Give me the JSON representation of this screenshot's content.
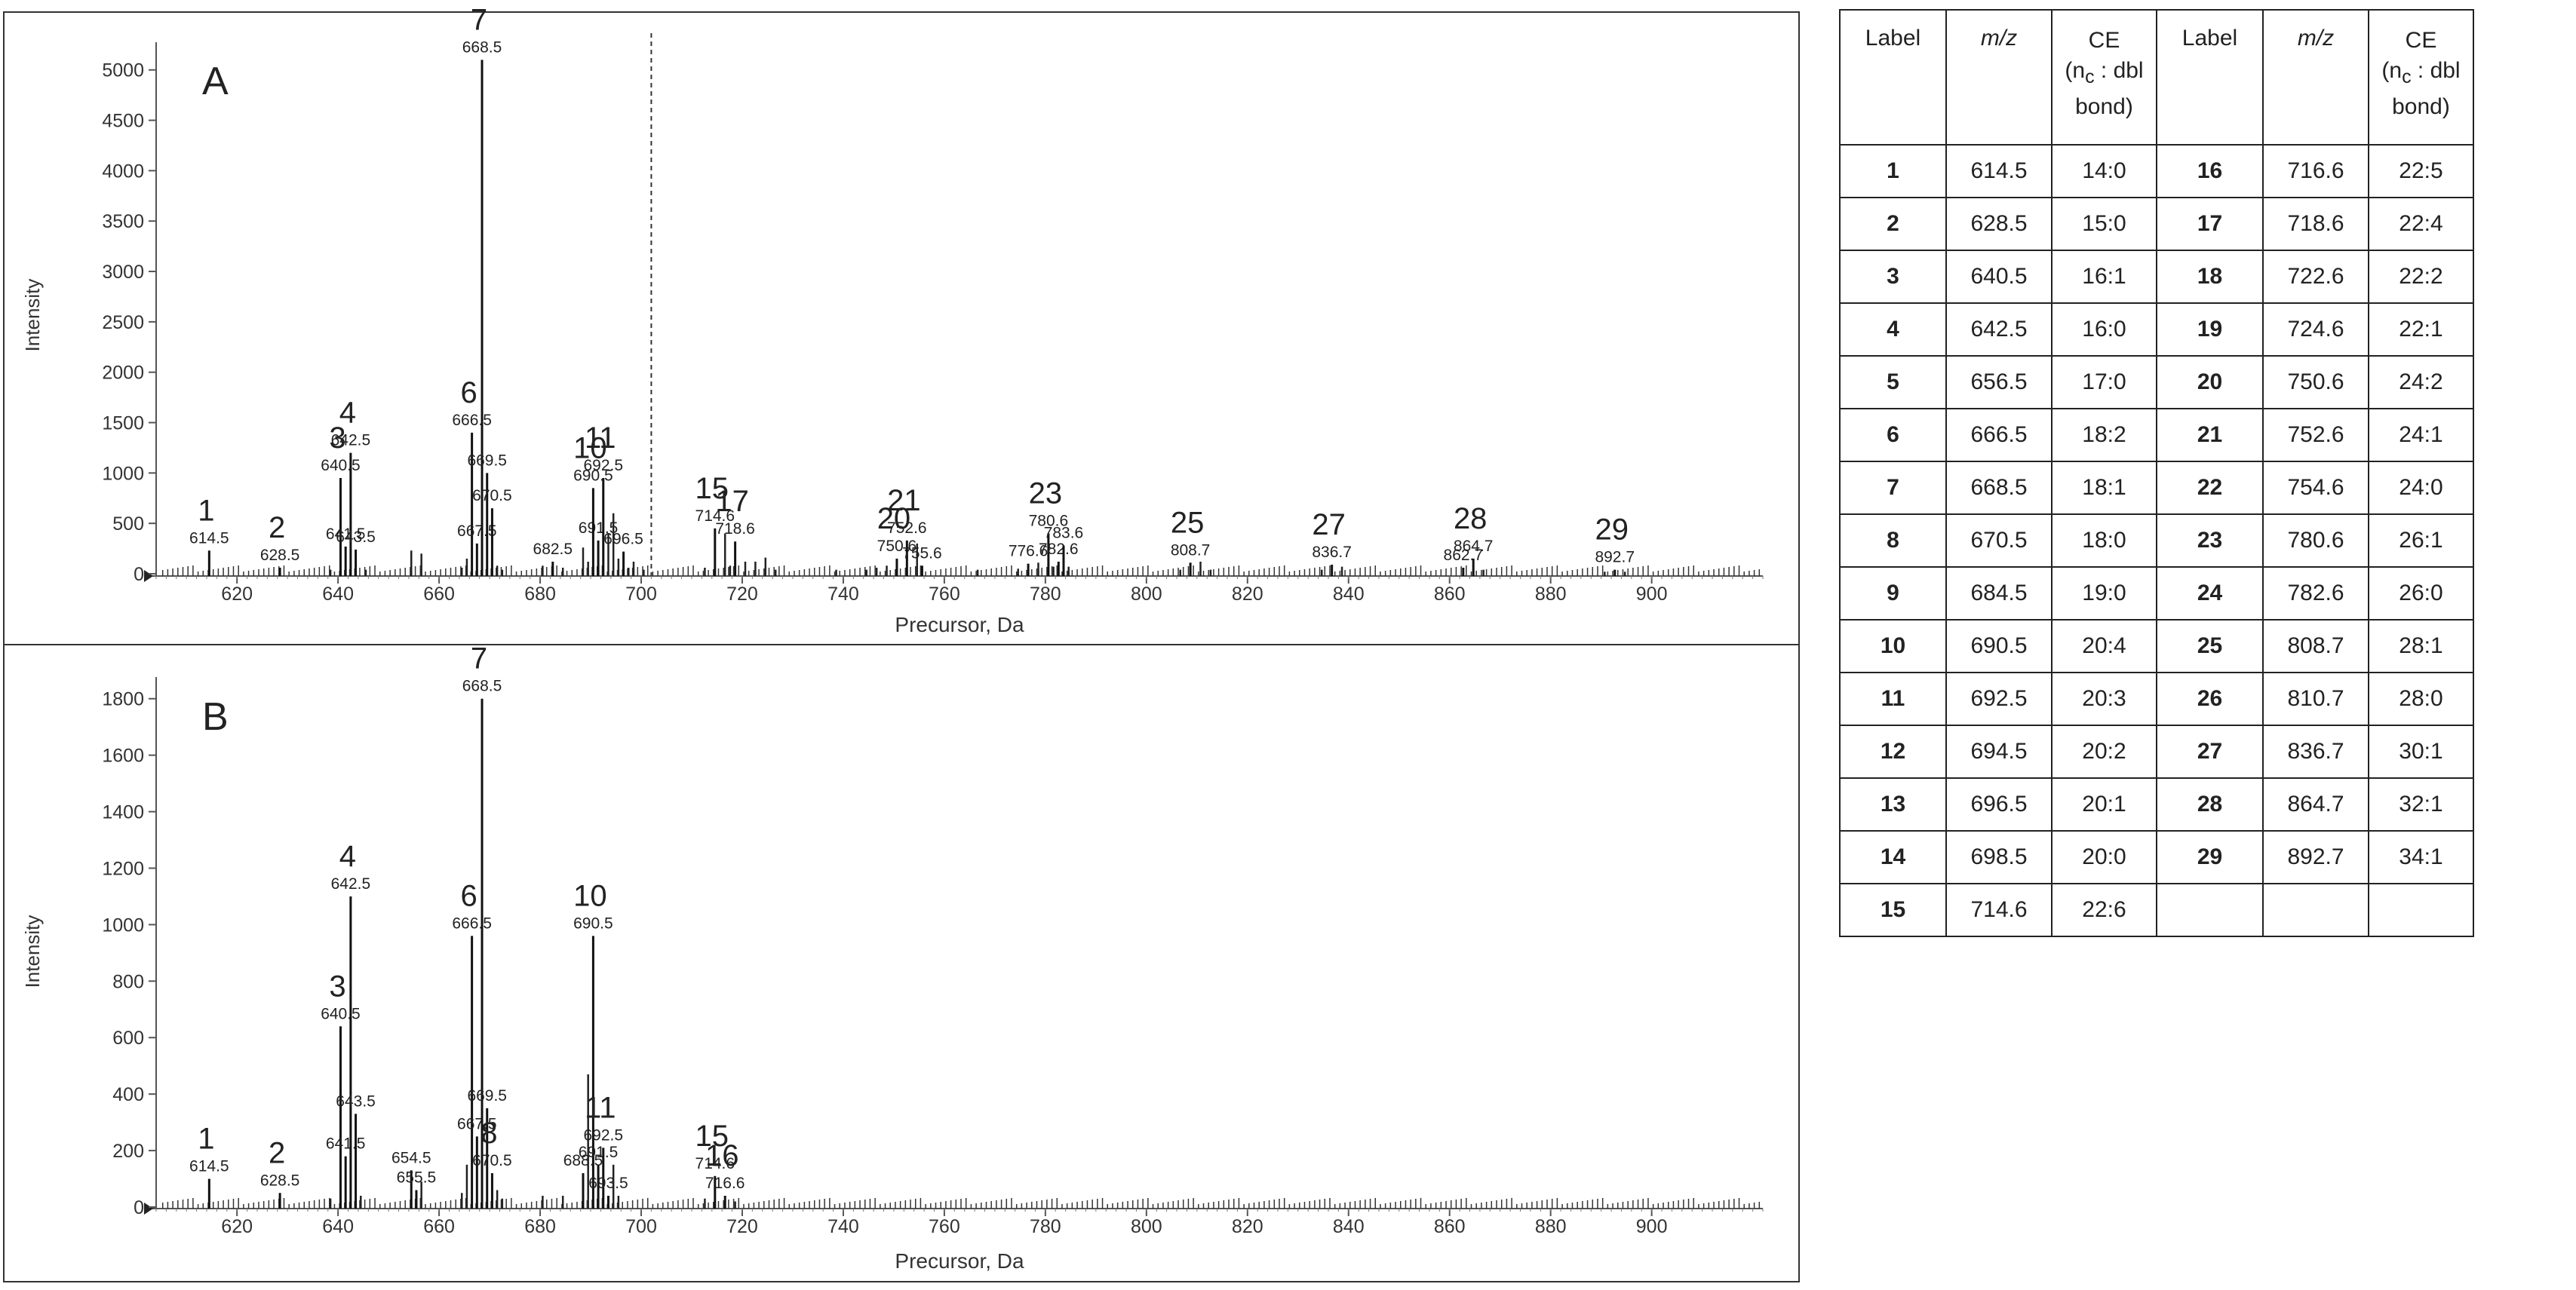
{
  "chart_data": [
    {
      "type": "bar",
      "panel_label": "A",
      "xlabel": "Precursor, Da",
      "ylabel": "Intensity",
      "xlim": [
        604,
        922
      ],
      "ylim": [
        0,
        5200
      ],
      "x_ticks": [
        620,
        640,
        660,
        680,
        700,
        720,
        740,
        760,
        780,
        800,
        820,
        840,
        860,
        880,
        900
      ],
      "y_ticks": [
        0,
        500,
        1000,
        1500,
        2000,
        2500,
        3000,
        3500,
        4000,
        4500,
        5000
      ],
      "dashed_line_x": 702,
      "peaks": [
        {
          "mz": 614.5,
          "intensity": 230,
          "mz_label": "614.5",
          "num": "1"
        },
        {
          "mz": 628.5,
          "intensity": 60,
          "mz_label": "628.5",
          "num": "2"
        },
        {
          "mz": 640.5,
          "intensity": 950,
          "mz_label": "640.5",
          "num": "3"
        },
        {
          "mz": 641.5,
          "intensity": 270,
          "mz_label": "641.5",
          "num": ""
        },
        {
          "mz": 642.5,
          "intensity": 1200,
          "mz_label": "642.5",
          "num": "4"
        },
        {
          "mz": 643.5,
          "intensity": 240,
          "mz_label": "643.5",
          "num": ""
        },
        {
          "mz": 666.5,
          "intensity": 1400,
          "mz_label": "666.5",
          "num": "6"
        },
        {
          "mz": 667.5,
          "intensity": 300,
          "mz_label": "667.5",
          "num": ""
        },
        {
          "mz": 668.5,
          "intensity": 5100,
          "mz_label": "668.5",
          "num": "7"
        },
        {
          "mz": 669.5,
          "intensity": 1000,
          "mz_label": "669.5",
          "num": ""
        },
        {
          "mz": 670.5,
          "intensity": 650,
          "mz_label": "670.5",
          "num": ""
        },
        {
          "mz": 682.5,
          "intensity": 120,
          "mz_label": "682.5",
          "num": ""
        },
        {
          "mz": 691.5,
          "intensity": 330,
          "mz_label": "691.5",
          "num": ""
        },
        {
          "mz": 692.5,
          "intensity": 950,
          "mz_label": "692.5",
          "num": "11"
        },
        {
          "mz": 690.5,
          "intensity": 850,
          "mz_label": "690.5",
          "num": "10"
        },
        {
          "mz": 696.5,
          "intensity": 220,
          "mz_label": "696.5",
          "num": ""
        },
        {
          "mz": 714.6,
          "intensity": 450,
          "mz_label": "714.6",
          "num": "15"
        },
        {
          "mz": 718.6,
          "intensity": 320,
          "mz_label": "718.6",
          "num": "17"
        },
        {
          "mz": 750.6,
          "intensity": 150,
          "mz_label": "750.6",
          "num": "20"
        },
        {
          "mz": 752.6,
          "intensity": 330,
          "mz_label": "752.6",
          "num": "21"
        },
        {
          "mz": 755.6,
          "intensity": 80,
          "mz_label": "755.6",
          "num": ""
        },
        {
          "mz": 776.6,
          "intensity": 100,
          "mz_label": "776.6",
          "num": ""
        },
        {
          "mz": 780.6,
          "intensity": 400,
          "mz_label": "780.6",
          "num": "23"
        },
        {
          "mz": 782.6,
          "intensity": 120,
          "mz_label": "782.6",
          "num": ""
        },
        {
          "mz": 783.6,
          "intensity": 280,
          "mz_label": "783.6",
          "num": ""
        },
        {
          "mz": 808.7,
          "intensity": 110,
          "mz_label": "808.7",
          "num": "25"
        },
        {
          "mz": 836.7,
          "intensity": 90,
          "mz_label": "836.7",
          "num": "27"
        },
        {
          "mz": 862.7,
          "intensity": 60,
          "mz_label": "862.7",
          "num": ""
        },
        {
          "mz": 864.7,
          "intensity": 150,
          "mz_label": "864.7",
          "num": "28"
        },
        {
          "mz": 892.7,
          "intensity": 40,
          "mz_label": "892.7",
          "num": "29"
        }
      ],
      "minor_peaks": [
        {
          "mz": 638.5,
          "intensity": 40
        },
        {
          "mz": 645.5,
          "intensity": 40
        },
        {
          "mz": 654.5,
          "intensity": 230
        },
        {
          "mz": 656.5,
          "intensity": 200
        },
        {
          "mz": 664.5,
          "intensity": 60
        },
        {
          "mz": 665.5,
          "intensity": 150
        },
        {
          "mz": 671.5,
          "intensity": 80
        },
        {
          "mz": 672.5,
          "intensity": 40
        },
        {
          "mz": 680.5,
          "intensity": 80
        },
        {
          "mz": 684.5,
          "intensity": 60
        },
        {
          "mz": 688.5,
          "intensity": 260
        },
        {
          "mz": 689.5,
          "intensity": 120
        },
        {
          "mz": 693.5,
          "intensity": 400
        },
        {
          "mz": 694.5,
          "intensity": 600
        },
        {
          "mz": 695.5,
          "intensity": 150
        },
        {
          "mz": 697.5,
          "intensity": 60
        },
        {
          "mz": 698.5,
          "intensity": 120
        },
        {
          "mz": 700.5,
          "intensity": 40
        },
        {
          "mz": 712.6,
          "intensity": 60
        },
        {
          "mz": 716.6,
          "intensity": 400
        },
        {
          "mz": 717.6,
          "intensity": 80
        },
        {
          "mz": 720.6,
          "intensity": 120
        },
        {
          "mz": 722.6,
          "intensity": 120
        },
        {
          "mz": 724.6,
          "intensity": 160
        },
        {
          "mz": 726.6,
          "intensity": 40
        },
        {
          "mz": 738.6,
          "intensity": 40
        },
        {
          "mz": 744.6,
          "intensity": 40
        },
        {
          "mz": 746.6,
          "intensity": 60
        },
        {
          "mz": 748.6,
          "intensity": 80
        },
        {
          "mz": 754.6,
          "intensity": 300
        },
        {
          "mz": 766.6,
          "intensity": 40
        },
        {
          "mz": 774.6,
          "intensity": 50
        },
        {
          "mz": 778.6,
          "intensity": 110
        },
        {
          "mz": 781.6,
          "intensity": 70
        },
        {
          "mz": 784.6,
          "intensity": 70
        },
        {
          "mz": 806.7,
          "intensity": 40
        },
        {
          "mz": 810.7,
          "intensity": 120
        },
        {
          "mz": 812.7,
          "intensity": 40
        },
        {
          "mz": 834.7,
          "intensity": 40
        },
        {
          "mz": 838.7,
          "intensity": 70
        },
        {
          "mz": 866.7,
          "intensity": 40
        },
        {
          "mz": 890.7,
          "intensity": 20
        },
        {
          "mz": 894.7,
          "intensity": 20
        }
      ]
    },
    {
      "type": "bar",
      "panel_label": "B",
      "xlabel": "Precursor, Da",
      "ylabel": "Intensity",
      "xlim": [
        604,
        922
      ],
      "ylim": [
        0,
        1850
      ],
      "x_ticks": [
        620,
        640,
        660,
        680,
        700,
        720,
        740,
        760,
        780,
        800,
        820,
        840,
        860,
        880,
        900
      ],
      "y_ticks": [
        0,
        200,
        400,
        600,
        800,
        1000,
        1200,
        1400,
        1600,
        1800
      ],
      "peaks": [
        {
          "mz": 614.5,
          "intensity": 100,
          "mz_label": "614.5",
          "num": "1"
        },
        {
          "mz": 628.5,
          "intensity": 50,
          "mz_label": "628.5",
          "num": "2"
        },
        {
          "mz": 640.5,
          "intensity": 640,
          "mz_label": "640.5",
          "num": "3"
        },
        {
          "mz": 641.5,
          "intensity": 180,
          "mz_label": "641.5",
          "num": ""
        },
        {
          "mz": 642.5,
          "intensity": 1100,
          "mz_label": "642.5",
          "num": "4"
        },
        {
          "mz": 643.5,
          "intensity": 330,
          "mz_label": "643.5",
          "num": ""
        },
        {
          "mz": 654.5,
          "intensity": 130,
          "mz_label": "654.5",
          "num": ""
        },
        {
          "mz": 655.5,
          "intensity": 60,
          "mz_label": "655.5",
          "num": ""
        },
        {
          "mz": 666.5,
          "intensity": 960,
          "mz_label": "666.5",
          "num": "6"
        },
        {
          "mz": 667.5,
          "intensity": 250,
          "mz_label": "667.5",
          "num": ""
        },
        {
          "mz": 668.5,
          "intensity": 1800,
          "mz_label": "668.5",
          "num": "7"
        },
        {
          "mz": 669.5,
          "intensity": 350,
          "mz_label": "669.5",
          "num": ""
        },
        {
          "mz": 670.5,
          "intensity": 120,
          "mz_label": "670.5",
          "num": "8"
        },
        {
          "mz": 690.5,
          "intensity": 960,
          "mz_label": "690.5",
          "num": "10"
        },
        {
          "mz": 691.5,
          "intensity": 150,
          "mz_label": "691.5",
          "num": ""
        },
        {
          "mz": 692.5,
          "intensity": 210,
          "mz_label": "692.5",
          "num": "11"
        },
        {
          "mz": 688.5,
          "intensity": 120,
          "mz_label": "688.5",
          "num": ""
        },
        {
          "mz": 693.5,
          "intensity": 40,
          "mz_label": "693.5",
          "num": ""
        },
        {
          "mz": 714.6,
          "intensity": 110,
          "mz_label": "714.6",
          "num": "15"
        },
        {
          "mz": 716.6,
          "intensity": 40,
          "mz_label": "716.6",
          "num": "16"
        }
      ],
      "minor_peaks": [
        {
          "mz": 638.5,
          "intensity": 30
        },
        {
          "mz": 644.5,
          "intensity": 40
        },
        {
          "mz": 656.5,
          "intensity": 90
        },
        {
          "mz": 664.5,
          "intensity": 50
        },
        {
          "mz": 665.5,
          "intensity": 150
        },
        {
          "mz": 671.5,
          "intensity": 60
        },
        {
          "mz": 672.5,
          "intensity": 30
        },
        {
          "mz": 680.5,
          "intensity": 40
        },
        {
          "mz": 684.5,
          "intensity": 40
        },
        {
          "mz": 689.5,
          "intensity": 470
        },
        {
          "mz": 694.5,
          "intensity": 150
        },
        {
          "mz": 695.5,
          "intensity": 40
        },
        {
          "mz": 712.6,
          "intensity": 30
        },
        {
          "mz": 718.6,
          "intensity": 20
        }
      ]
    }
  ],
  "table": {
    "headers": {
      "label": "Label",
      "mz": "m/z",
      "ce_line1": "CE",
      "ce_line2_pre": "(n",
      "ce_line2_sub": "c",
      "ce_line2_post": " : dbl",
      "ce_line3": "bond)"
    },
    "rows": [
      [
        {
          "label": "1",
          "mz": "614.5",
          "ce": "14:0"
        },
        {
          "label": "16",
          "mz": "716.6",
          "ce": "22:5"
        }
      ],
      [
        {
          "label": "2",
          "mz": "628.5",
          "ce": "15:0"
        },
        {
          "label": "17",
          "mz": "718.6",
          "ce": "22:4"
        }
      ],
      [
        {
          "label": "3",
          "mz": "640.5",
          "ce": "16:1"
        },
        {
          "label": "18",
          "mz": "722.6",
          "ce": "22:2"
        }
      ],
      [
        {
          "label": "4",
          "mz": "642.5",
          "ce": "16:0"
        },
        {
          "label": "19",
          "mz": "724.6",
          "ce": "22:1"
        }
      ],
      [
        {
          "label": "5",
          "mz": "656.5",
          "ce": "17:0"
        },
        {
          "label": "20",
          "mz": "750.6",
          "ce": "24:2"
        }
      ],
      [
        {
          "label": "6",
          "mz": "666.5",
          "ce": "18:2"
        },
        {
          "label": "21",
          "mz": "752.6",
          "ce": "24:1"
        }
      ],
      [
        {
          "label": "7",
          "mz": "668.5",
          "ce": "18:1"
        },
        {
          "label": "22",
          "mz": "754.6",
          "ce": "24:0"
        }
      ],
      [
        {
          "label": "8",
          "mz": "670.5",
          "ce": "18:0"
        },
        {
          "label": "23",
          "mz": "780.6",
          "ce": "26:1"
        }
      ],
      [
        {
          "label": "9",
          "mz": "684.5",
          "ce": "19:0"
        },
        {
          "label": "24",
          "mz": "782.6",
          "ce": "26:0"
        }
      ],
      [
        {
          "label": "10",
          "mz": "690.5",
          "ce": "20:4"
        },
        {
          "label": "25",
          "mz": "808.7",
          "ce": "28:1"
        }
      ],
      [
        {
          "label": "11",
          "mz": "692.5",
          "ce": "20:3"
        },
        {
          "label": "26",
          "mz": "810.7",
          "ce": "28:0"
        }
      ],
      [
        {
          "label": "12",
          "mz": "694.5",
          "ce": "20:2"
        },
        {
          "label": "27",
          "mz": "836.7",
          "ce": "30:1"
        }
      ],
      [
        {
          "label": "13",
          "mz": "696.5",
          "ce": "20:1"
        },
        {
          "label": "28",
          "mz": "864.7",
          "ce": "32:1"
        }
      ],
      [
        {
          "label": "14",
          "mz": "698.5",
          "ce": "20:0"
        },
        {
          "label": "29",
          "mz": "892.7",
          "ce": "34:1"
        }
      ],
      [
        {
          "label": "15",
          "mz": "714.6",
          "ce": "22:6"
        },
        {
          "label": "",
          "mz": "",
          "ce": ""
        }
      ]
    ]
  }
}
